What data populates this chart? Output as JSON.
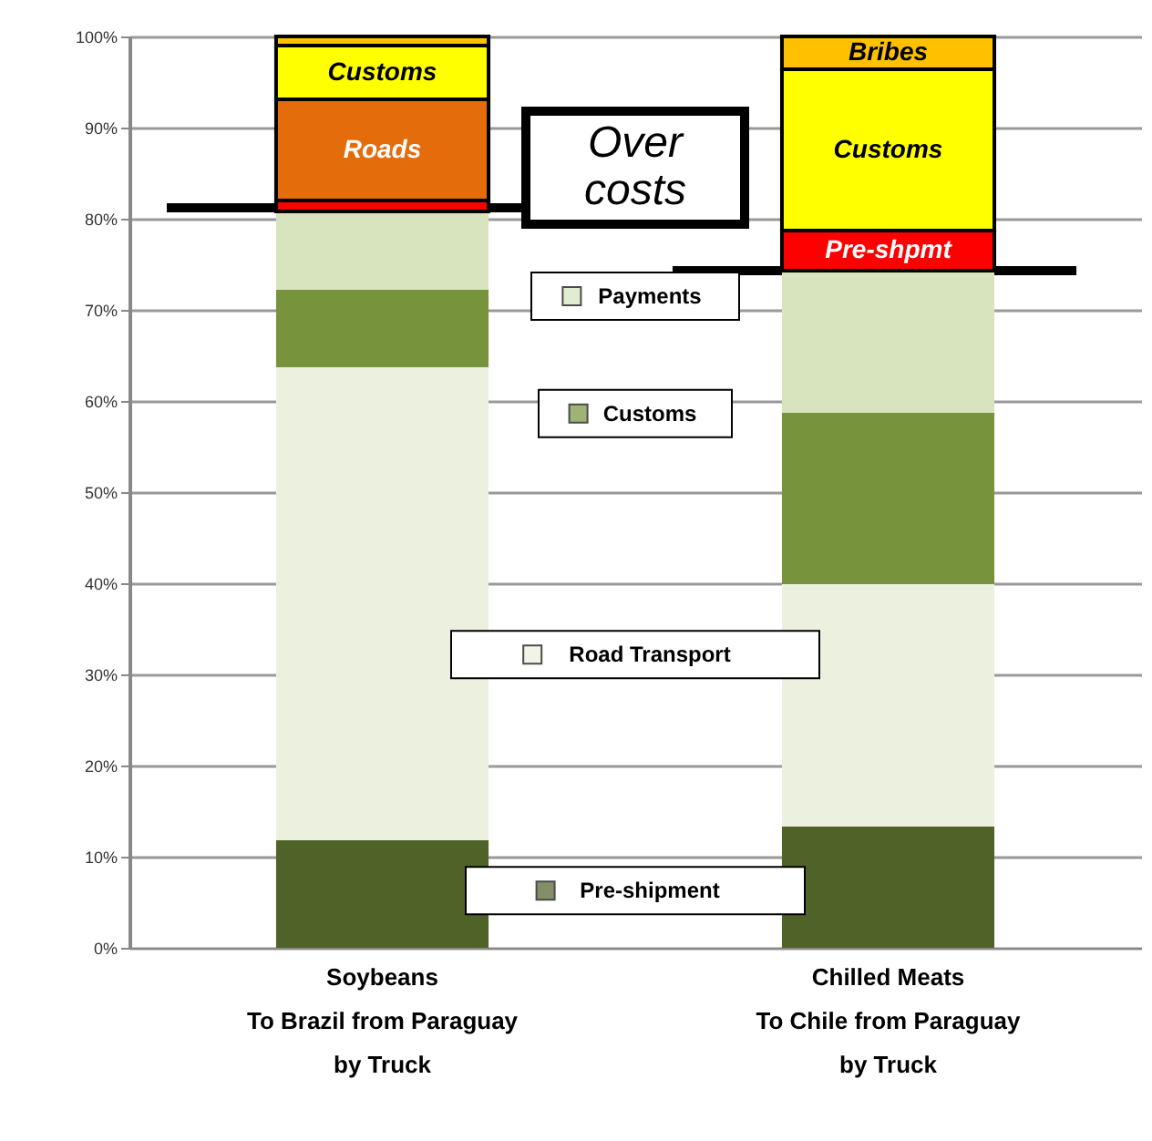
{
  "chart_data": {
    "type": "bar",
    "stacked": true,
    "categories": [
      "Soybeans\nTo Brazil from Paraguay\nby Truck",
      "Chilled Meats\nTo Chile from Paraguay\nby Truck"
    ],
    "series": [
      {
        "name": "Pre-shipment",
        "color": "#4f6228",
        "values": [
          11.8,
          13.3
        ]
      },
      {
        "name": "Road Transport",
        "color": "#ebf1de",
        "values": [
          51.9,
          26.6
        ]
      },
      {
        "name": "Customs",
        "color": "#77933c",
        "values": [
          8.5,
          18.8
        ]
      },
      {
        "name": "Payments",
        "color": "#d7e4bd",
        "values": [
          8.6,
          15.6
        ]
      },
      {
        "name": "Pre-shpmt",
        "color": "#ff0000",
        "values": [
          1.2,
          4.4
        ]
      },
      {
        "name": "Roads",
        "color": "#e46c0a",
        "values": [
          11.1,
          0
        ]
      },
      {
        "name": "Customs",
        "color": "#ffff00",
        "values": [
          5.9,
          17.7
        ]
      },
      {
        "name": "Bribes",
        "color": "#ffc000",
        "values": [
          1.0,
          3.6
        ]
      }
    ],
    "ref_lines": [
      {
        "axis": "y",
        "value": 81.2
      },
      {
        "axis": "y",
        "value": 74.3
      }
    ],
    "annotations": [
      "Over costs"
    ],
    "ylim": [
      0,
      100
    ],
    "yticks": [
      {
        "value": 0,
        "label": "0%"
      },
      {
        "value": 10,
        "label": "10%"
      },
      {
        "value": 20,
        "label": "20%"
      },
      {
        "value": 30,
        "label": "30%"
      },
      {
        "value": 40,
        "label": "40%"
      },
      {
        "value": 50,
        "label": "50%"
      },
      {
        "value": 60,
        "label": "60%"
      },
      {
        "value": 70,
        "label": "70%"
      },
      {
        "value": 80,
        "label": "80%"
      },
      {
        "value": 90,
        "label": "90%"
      },
      {
        "value": 100,
        "label": "100%"
      }
    ],
    "grid": true,
    "legend": "center"
  }
}
